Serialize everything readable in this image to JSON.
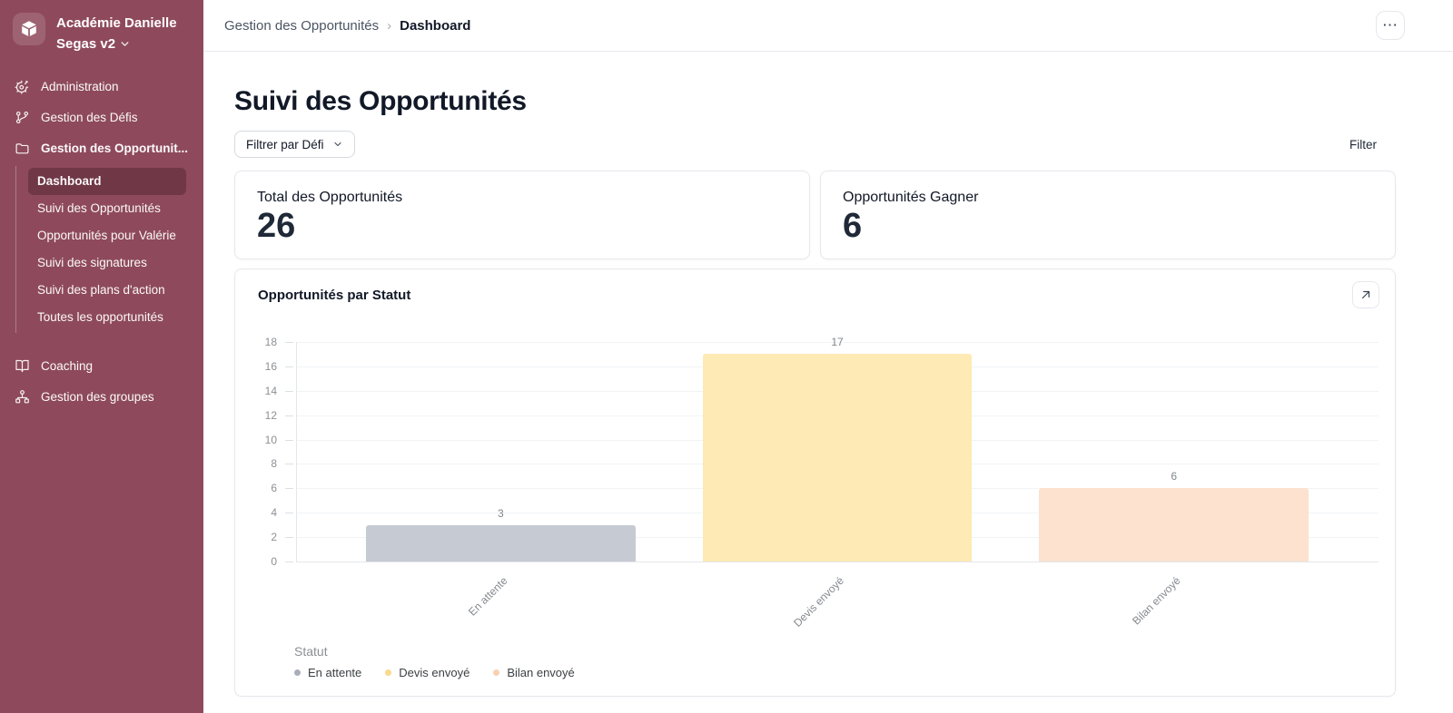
{
  "sidebar": {
    "brand_name": "Académie Danielle Segas v2",
    "bg_color": "#8e4a5c",
    "items": [
      {
        "label": "Administration",
        "icon": "gear-icon"
      },
      {
        "label": "Gestion des Défis",
        "icon": "branch-icon"
      },
      {
        "label": "Gestion des Opportunit...",
        "icon": "folder-icon"
      },
      {
        "label": "Coaching",
        "icon": "book-icon"
      },
      {
        "label": "Gestion des groupes",
        "icon": "org-icon"
      }
    ],
    "sub_items": [
      {
        "label": "Dashboard",
        "active": true
      },
      {
        "label": "Suivi des Opportunités"
      },
      {
        "label": "Opportunités pour Valérie"
      },
      {
        "label": "Suivi des signatures"
      },
      {
        "label": "Suivi des plans d'action"
      },
      {
        "label": "Toutes les opportunités"
      }
    ]
  },
  "topbar": {
    "breadcrumb": [
      {
        "label": "Gestion des Opportunités"
      },
      {
        "label": "Dashboard"
      }
    ],
    "separator": "›",
    "more_label": "⋯"
  },
  "page": {
    "title": "Suivi des Opportunités",
    "filter_button_label": "Filtrer par Défi",
    "filter_right_label": "Filter"
  },
  "stats": [
    {
      "label": "Total des Opportunités",
      "value": "26"
    },
    {
      "label": "Opportunités Gagner",
      "value": "6"
    }
  ],
  "chart_card": {
    "title": "Opportunités par Statut"
  },
  "chart_data": {
    "type": "bar",
    "title": "Opportunités par Statut",
    "categories": [
      "En attente",
      "Devis envoyé",
      "Bilan envoyé"
    ],
    "values": [
      3,
      17,
      6
    ],
    "bar_colors": [
      "#c6cad3",
      "#fdeab5",
      "#fce2cf"
    ],
    "legend_dot_colors": [
      "#a9aeb9",
      "#f9d98e",
      "#f8d1b2"
    ],
    "xlabel": "Statut",
    "ylabel": "",
    "ylim": [
      0,
      18
    ],
    "ytick_step": 2,
    "grid": true,
    "value_labels": true,
    "legend_position": "bottom-left"
  }
}
